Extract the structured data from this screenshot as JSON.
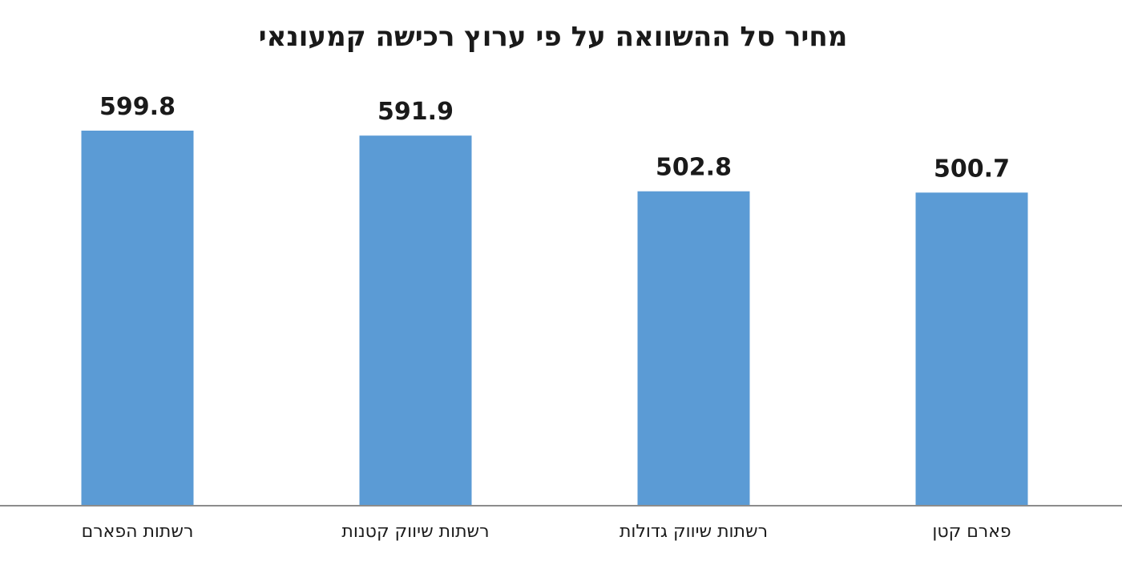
{
  "chart_data": {
    "type": "bar",
    "title": "מחיר סל ההשוואה על פי ערוץ רכישה קמעונאי",
    "categories": [
      "רשתות הפארם",
      "רשתות שיווק קטנות",
      "רשתות שיווק גדולות",
      "פארם קטן"
    ],
    "values": [
      599.8,
      591.9,
      502.8,
      500.7
    ],
    "value_labels": [
      "599.8",
      "591.9",
      "502.8",
      "500.7"
    ],
    "xlabel": "",
    "ylabel": "",
    "ylim": [
      0,
      650
    ],
    "grid": false,
    "legend": "none",
    "bar_color": "#5b9bd5",
    "axis_color": "#8c8c8c",
    "label_color": "#1a1a1a"
  }
}
